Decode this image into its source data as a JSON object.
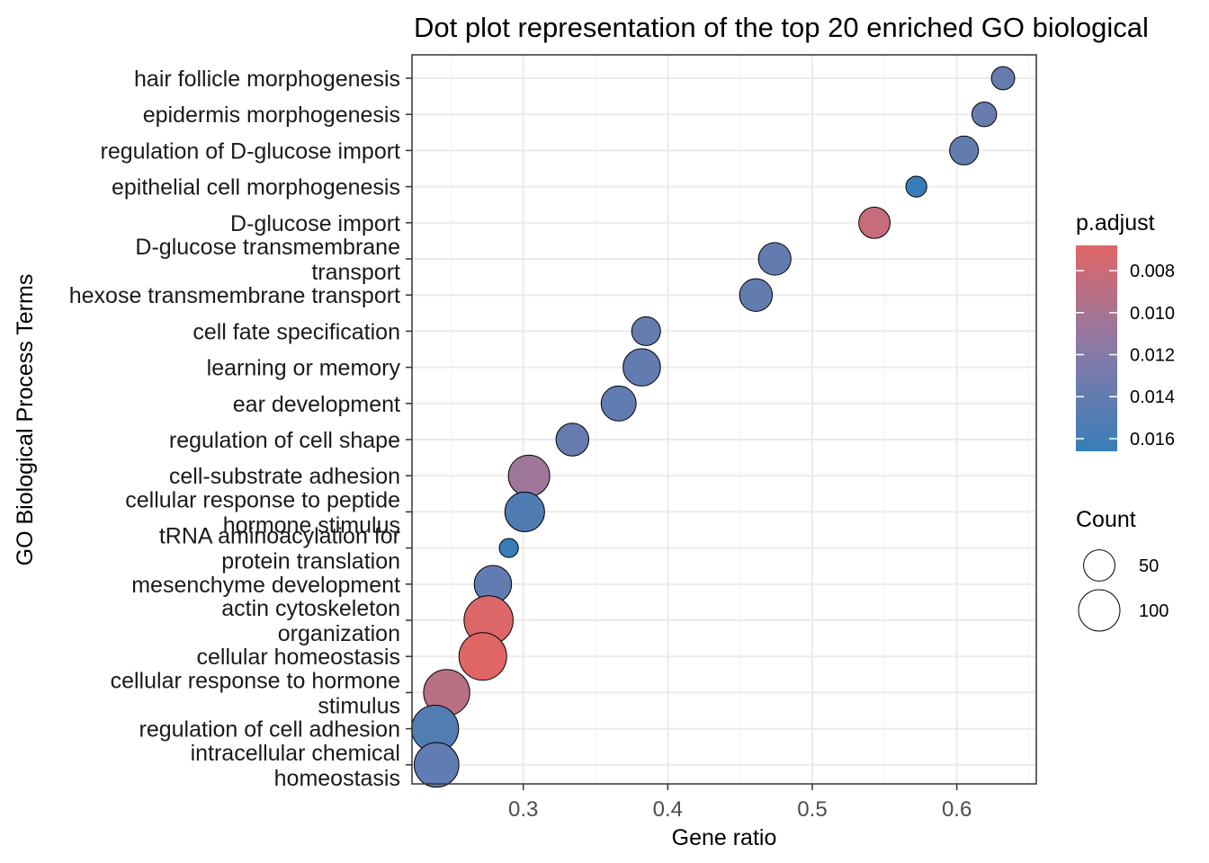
{
  "chart_data": {
    "type": "scatter",
    "title": "Dot plot representation of the top 20 enriched GO biological",
    "xlabel": "Gene ratio",
    "ylabel": "GO Biological Process Terms",
    "xlim": [
      0.223,
      0.655
    ],
    "x_ticks": [
      0.3,
      0.4,
      0.5,
      0.6
    ],
    "x_tick_labels": [
      "0.3",
      "0.4",
      "0.5",
      "0.6"
    ],
    "grid": true,
    "legend_placement": "right",
    "color_legend": {
      "title": "p.adjust",
      "range": [
        0.0068,
        0.0166
      ],
      "low_color": "#e06666",
      "mid_color": "#8a7aa8",
      "high_color": "#377eb8",
      "ticks": [
        0.008,
        0.01,
        0.012,
        0.014,
        0.016
      ],
      "tick_labels": [
        "0.008",
        "0.010",
        "0.012",
        "0.014",
        "0.016"
      ]
    },
    "size_legend": {
      "title": "Count",
      "values": [
        50,
        100
      ],
      "labels": [
        "50",
        "100"
      ]
    },
    "points": [
      {
        "term": [
          "hair follicle morphogenesis"
        ],
        "gene_ratio": 0.632,
        "p_adjust": 0.0138,
        "count": 22
      },
      {
        "term": [
          "epidermis morphogenesis"
        ],
        "gene_ratio": 0.619,
        "p_adjust": 0.0136,
        "count": 26
      },
      {
        "term": [
          "regulation of D-glucose import"
        ],
        "gene_ratio": 0.605,
        "p_adjust": 0.014,
        "count": 40
      },
      {
        "term": [
          "epithelial cell morphogenesis"
        ],
        "gene_ratio": 0.572,
        "p_adjust": 0.0166,
        "count": 16
      },
      {
        "term": [
          "D-glucose import"
        ],
        "gene_ratio": 0.543,
        "p_adjust": 0.0083,
        "count": 50
      },
      {
        "term": [
          "D-glucose transmembrane",
          "transport"
        ],
        "gene_ratio": 0.474,
        "p_adjust": 0.014,
        "count": 55
      },
      {
        "term": [
          "hexose transmembrane transport"
        ],
        "gene_ratio": 0.461,
        "p_adjust": 0.014,
        "count": 56
      },
      {
        "term": [
          "cell fate specification"
        ],
        "gene_ratio": 0.385,
        "p_adjust": 0.0138,
        "count": 40
      },
      {
        "term": [
          "learning or memory"
        ],
        "gene_ratio": 0.382,
        "p_adjust": 0.014,
        "count": 78
      },
      {
        "term": [
          "ear development"
        ],
        "gene_ratio": 0.366,
        "p_adjust": 0.0141,
        "count": 66
      },
      {
        "term": [
          "regulation of cell shape"
        ],
        "gene_ratio": 0.334,
        "p_adjust": 0.0138,
        "count": 56
      },
      {
        "term": [
          "cell-substrate adhesion"
        ],
        "gene_ratio": 0.304,
        "p_adjust": 0.0106,
        "count": 100
      },
      {
        "term": [
          "cellular response to peptide",
          "hormone stimulus"
        ],
        "gene_ratio": 0.301,
        "p_adjust": 0.0152,
        "count": 90
      },
      {
        "term": [
          "tRNA aminoacylation for",
          "protein translation"
        ],
        "gene_ratio": 0.29,
        "p_adjust": 0.0166,
        "count": 12
      },
      {
        "term": [
          "mesenchyme development"
        ],
        "gene_ratio": 0.279,
        "p_adjust": 0.0141,
        "count": 78
      },
      {
        "term": [
          "actin cytoskeleton",
          "organization"
        ],
        "gene_ratio": 0.276,
        "p_adjust": 0.007,
        "count": 150
      },
      {
        "term": [
          "cellular homeostasis"
        ],
        "gene_ratio": 0.272,
        "p_adjust": 0.0068,
        "count": 140
      },
      {
        "term": [
          "cellular response to hormone",
          "stimulus"
        ],
        "gene_ratio": 0.247,
        "p_adjust": 0.009,
        "count": 130
      },
      {
        "term": [
          "regulation of cell adhesion"
        ],
        "gene_ratio": 0.239,
        "p_adjust": 0.015,
        "count": 135
      },
      {
        "term": [
          "intracellular chemical",
          "homeostasis"
        ],
        "gene_ratio": 0.24,
        "p_adjust": 0.0141,
        "count": 120
      }
    ]
  }
}
